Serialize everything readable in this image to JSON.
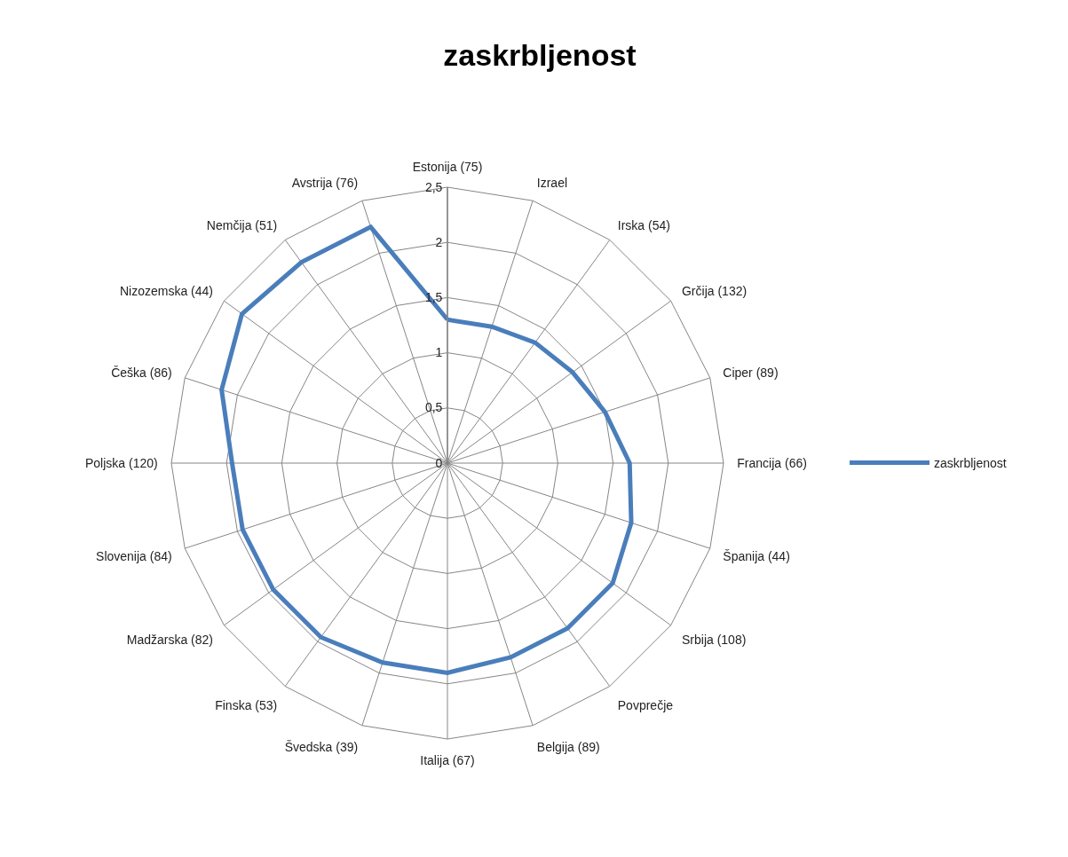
{
  "chart_data": {
    "type": "radar",
    "title": "zaskrbljenost",
    "categories": [
      "Estonija (75)",
      "Izrael",
      "Irska (54)",
      "Grčija (132)",
      "Ciper (89)",
      "Francija (66)",
      "Španija (44)",
      "Srbija (108)",
      "Povprečje",
      "Belgija (89)",
      "Italija (67)",
      "Švedska (39)",
      "Finska (53)",
      "Madžarska (82)",
      "Slovenija (84)",
      "Poljska (120)",
      "Češka (86)",
      "Nizozemska (44)",
      "Nemčija (51)",
      "Avstrija (76)"
    ],
    "series": [
      {
        "name": "zaskrbljenost",
        "color": "#4a7ebb",
        "values": [
          1.3,
          1.3,
          1.35,
          1.4,
          1.5,
          1.65,
          1.75,
          1.85,
          1.85,
          1.85,
          1.9,
          1.9,
          1.95,
          1.95,
          1.95,
          1.95,
          2.15,
          2.3,
          2.25,
          2.25
        ]
      }
    ],
    "ylim": [
      0,
      2.5
    ],
    "yticks": [
      0,
      {
        "value": 0.5,
        "label": "0,5"
      },
      1,
      {
        "value": 1.5,
        "label": "1,5"
      },
      2,
      {
        "value": 2.5,
        "label": "2,5"
      }
    ],
    "grid": true,
    "legend": "right",
    "line_style": "solid"
  }
}
